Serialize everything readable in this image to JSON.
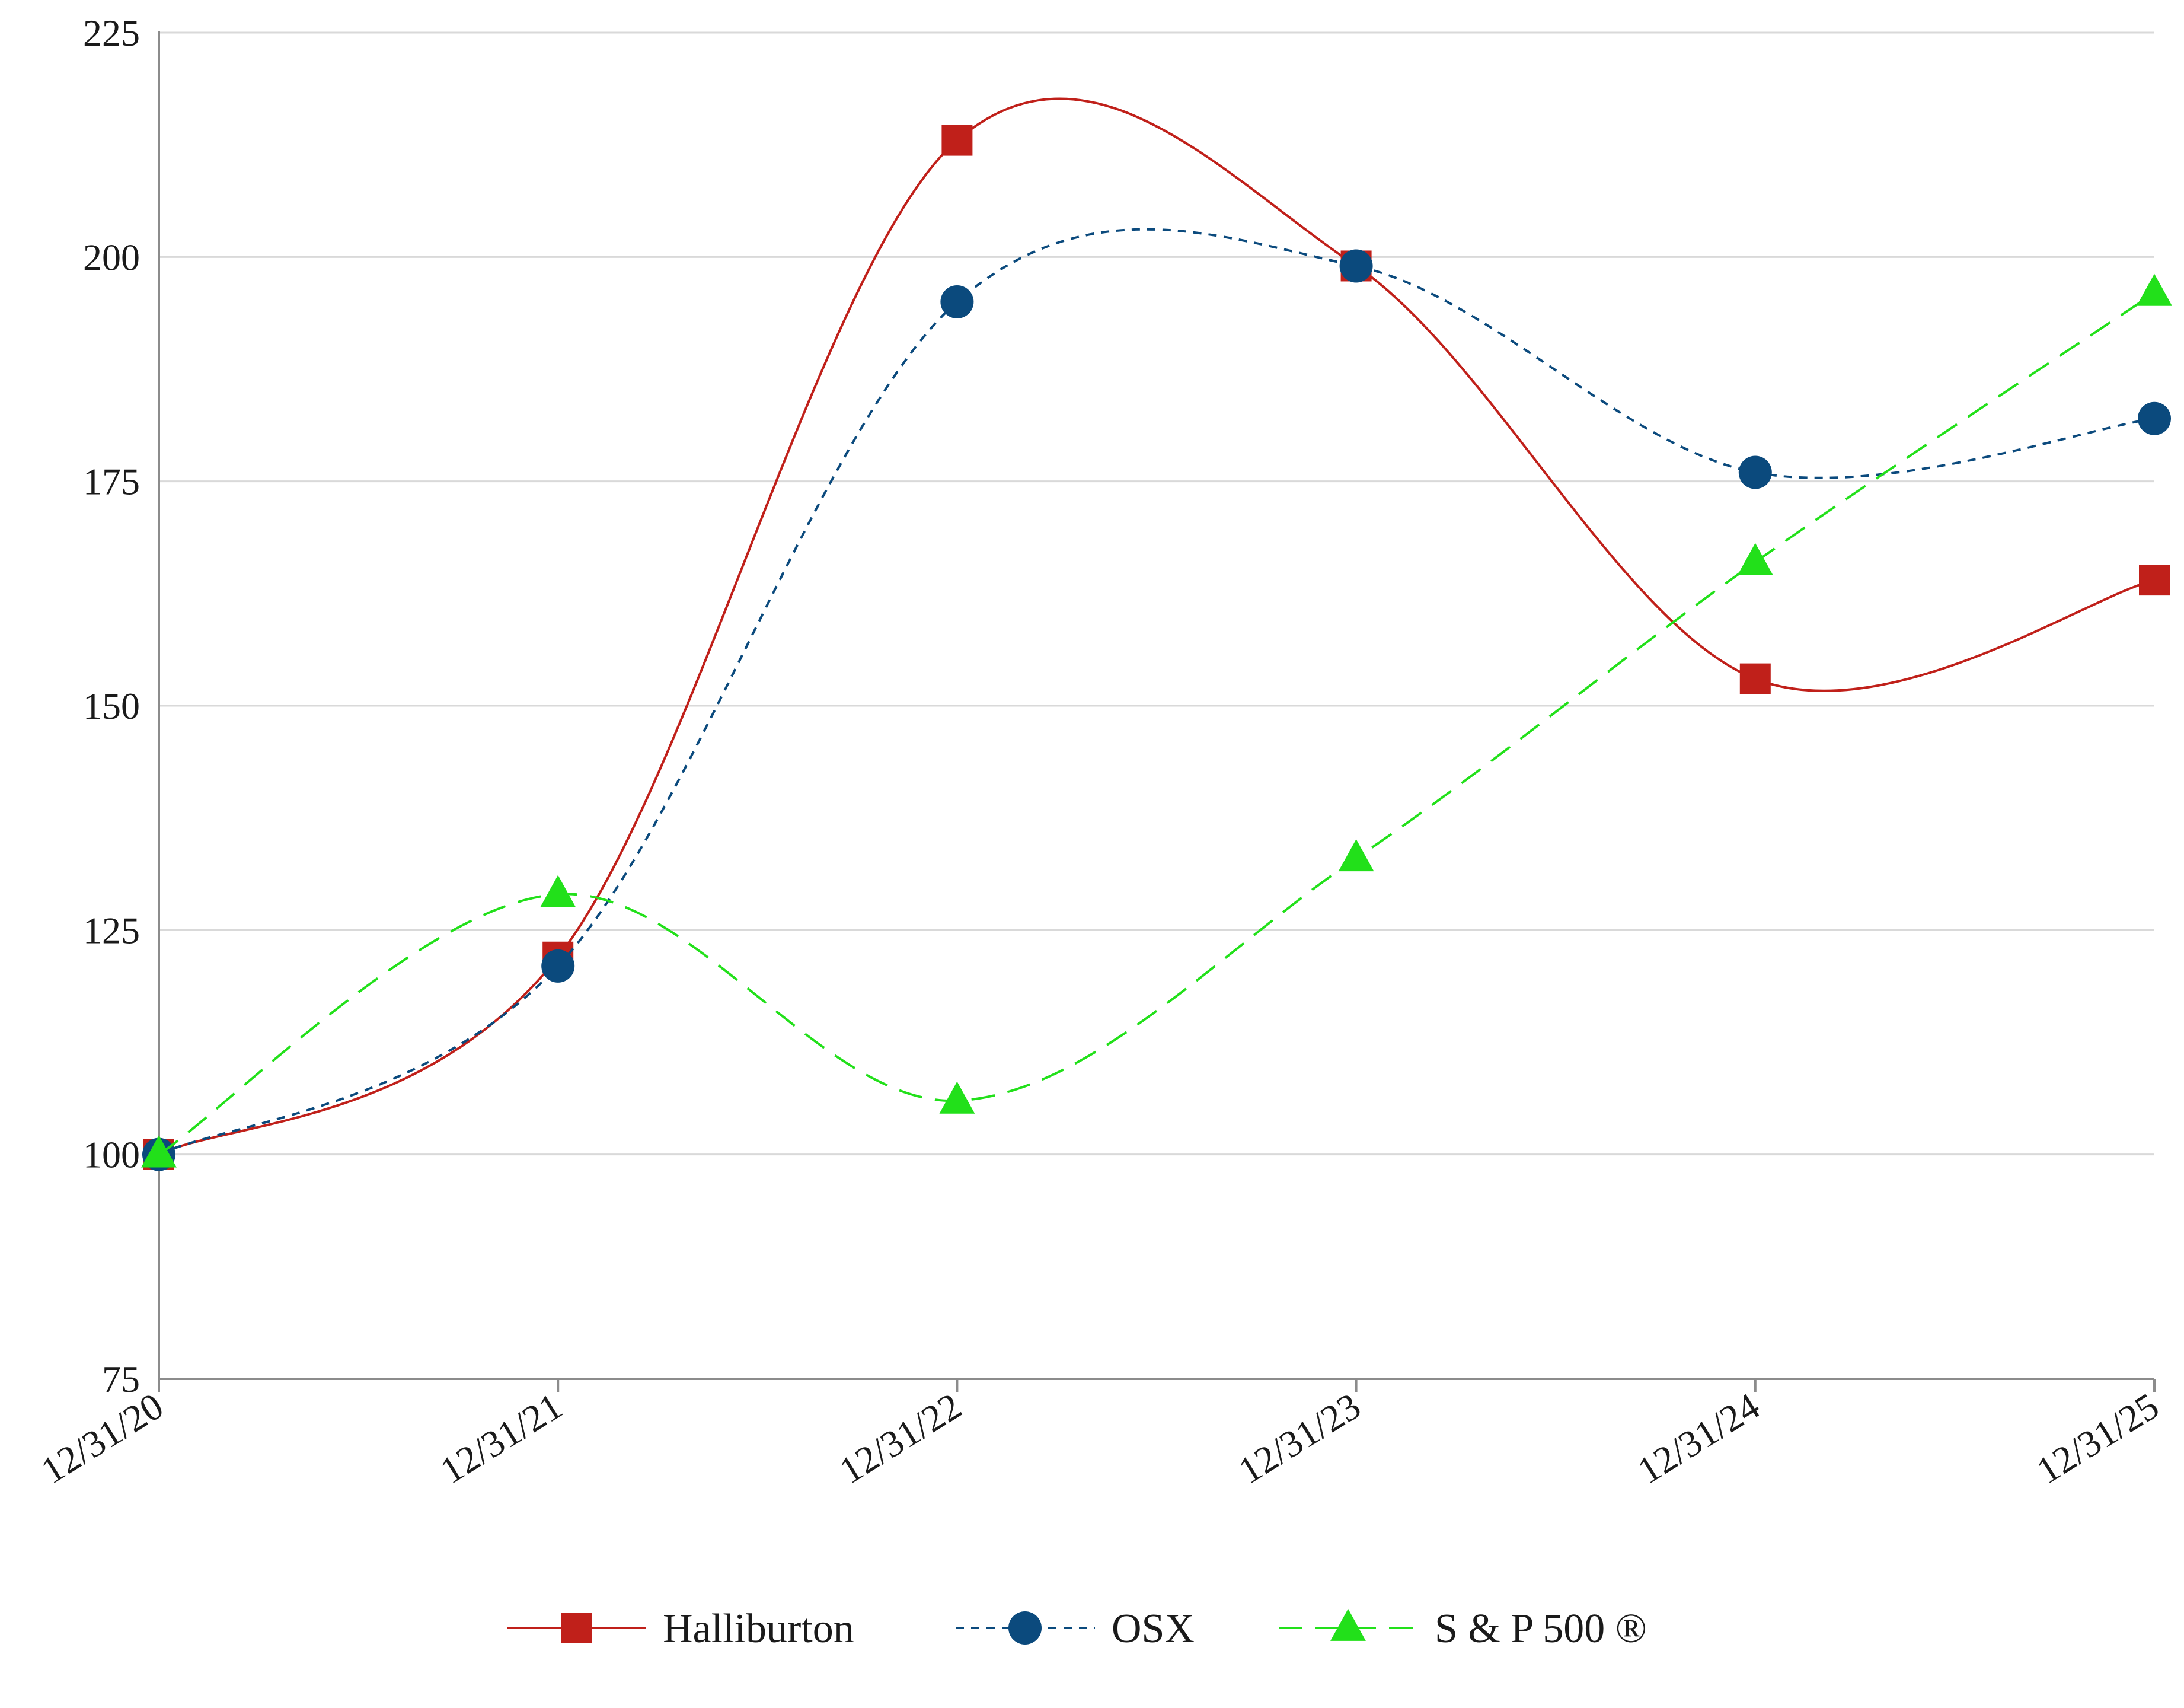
{
  "chart_data": {
    "type": "line",
    "title": "",
    "xlabel": "",
    "ylabel": "",
    "categories": [
      "12/31/20",
      "12/31/21",
      "12/31/22",
      "12/31/23",
      "12/31/24",
      "12/31/25"
    ],
    "ylim": [
      75,
      225
    ],
    "yticks": [
      75,
      100,
      125,
      150,
      175,
      200,
      225
    ],
    "ytick_labels": [
      "75",
      "100",
      "125",
      "150",
      "175",
      "200",
      "225"
    ],
    "grid": "horizontal",
    "legend_position": "bottom-center",
    "series": [
      {
        "name": "Halliburton",
        "values": [
          100,
          122,
          213,
          199,
          153,
          164
        ],
        "color": "#C0201A",
        "line_style": "solid",
        "marker": "square"
      },
      {
        "name": "OSX",
        "values": [
          100,
          121,
          195,
          199,
          176,
          182
        ],
        "color": "#0B4A7D",
        "line_style": "dotted",
        "marker": "circle"
      },
      {
        "name": "S & P 500 ®",
        "values": [
          100,
          129,
          106,
          133,
          166,
          196
        ],
        "color": "#22E01A",
        "line_style": "dashed",
        "marker": "triangle"
      }
    ]
  }
}
